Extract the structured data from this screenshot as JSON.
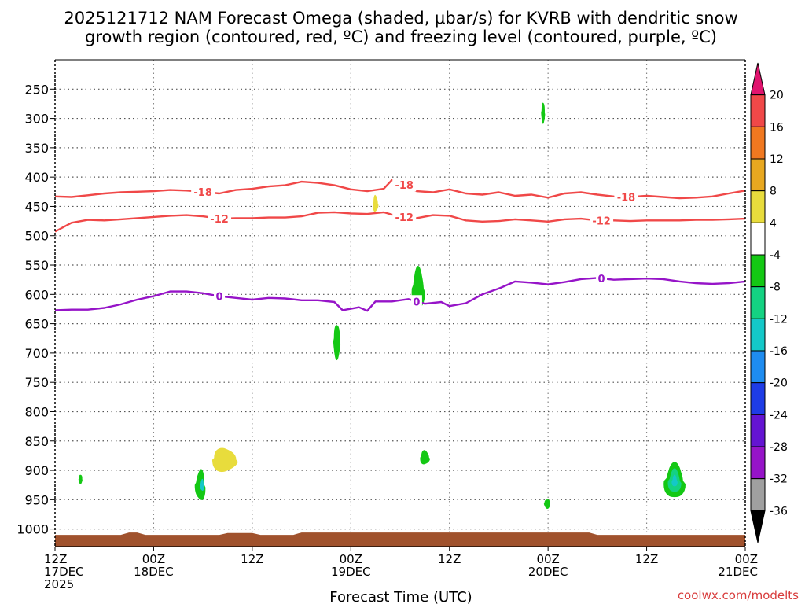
{
  "chart_data": {
    "type": "contour",
    "title_lines": [
      "2025121712 NAM Forecast Omega (shaded, μbar/s) for KVRB with dendritic snow",
      "growth region (contoured, red, ºC) and freezing level (contoured, purple, ºC)"
    ],
    "xlabel": "Forecast Time (UTC)",
    "credit": "coolwx.com/modelts",
    "x_range_hours": [
      0,
      84
    ],
    "x_ticks": [
      {
        "h": 0,
        "l1": "12Z",
        "l2": "17DEC",
        "l3": "2025"
      },
      {
        "h": 12,
        "l1": "00Z",
        "l2": "18DEC"
      },
      {
        "h": 24,
        "l1": "12Z"
      },
      {
        "h": 36,
        "l1": "00Z",
        "l2": "19DEC"
      },
      {
        "h": 48,
        "l1": "12Z"
      },
      {
        "h": 60,
        "l1": "00Z",
        "l2": "20DEC"
      },
      {
        "h": 72,
        "l1": "12Z"
      },
      {
        "h": 84,
        "l1": "00Z",
        "l2": "21DEC"
      }
    ],
    "y_ticks": [
      {
        "p": 250,
        "label": "250"
      },
      {
        "p": 300,
        "label": "300"
      },
      {
        "p": 350,
        "label": "350"
      },
      {
        "p": 400,
        "label": "400"
      },
      {
        "p": 450,
        "label": "450"
      },
      {
        "p": 500,
        "label": "500"
      },
      {
        "p": 550,
        "label": "550"
      },
      {
        "p": 600,
        "label": "600"
      },
      {
        "p": 650,
        "label": "650"
      },
      {
        "p": 700,
        "label": "700"
      },
      {
        "p": 750,
        "label": "750"
      },
      {
        "p": 800,
        "label": "800"
      },
      {
        "p": 850,
        "label": "850"
      },
      {
        "p": 900,
        "label": "900"
      },
      {
        "p": 950,
        "label": "950"
      },
      {
        "p": 1000,
        "label": "1000"
      }
    ],
    "colorbar": {
      "labels": [
        "20",
        "16",
        "12",
        "8",
        "4",
        "-4",
        "-8",
        "-12",
        "-16",
        "-20",
        "-24",
        "-28",
        "-32",
        "-36"
      ],
      "colors": [
        "#e0146e",
        "#f04848",
        "#f07820",
        "#e8a820",
        "#e8dc3c",
        "#ffffff",
        "#14c814",
        "#14d282",
        "#14c8c8",
        "#1e8cf0",
        "#1e3ce6",
        "#6414d2",
        "#9614c8",
        "#a0a0a0",
        "#000000"
      ]
    },
    "contours": [
      {
        "name": "-18C",
        "label": "-18",
        "color": "#f04848",
        "label_hours": [
          18,
          42.5,
          69.5
        ],
        "points": [
          [
            0,
            433
          ],
          [
            2,
            434
          ],
          [
            4,
            431
          ],
          [
            6,
            428
          ],
          [
            8,
            426
          ],
          [
            10,
            425
          ],
          [
            12,
            424
          ],
          [
            14,
            422
          ],
          [
            16,
            423
          ],
          [
            18,
            425
          ],
          [
            20,
            428
          ],
          [
            22,
            422
          ],
          [
            24,
            420
          ],
          [
            26,
            416
          ],
          [
            28,
            414
          ],
          [
            30,
            408
          ],
          [
            32,
            410
          ],
          [
            34,
            414
          ],
          [
            36,
            421
          ],
          [
            38,
            424
          ],
          [
            40,
            420
          ],
          [
            41,
            405
          ],
          [
            42,
            410
          ],
          [
            44,
            424
          ],
          [
            46,
            426
          ],
          [
            48,
            421
          ],
          [
            50,
            428
          ],
          [
            52,
            430
          ],
          [
            54,
            426
          ],
          [
            56,
            432
          ],
          [
            58,
            430
          ],
          [
            60,
            435
          ],
          [
            62,
            428
          ],
          [
            64,
            426
          ],
          [
            66,
            430
          ],
          [
            68,
            433
          ],
          [
            70,
            434
          ],
          [
            72,
            432
          ],
          [
            74,
            434
          ],
          [
            76,
            436
          ],
          [
            78,
            435
          ],
          [
            80,
            433
          ],
          [
            82,
            428
          ],
          [
            84,
            423
          ]
        ]
      },
      {
        "name": "-12C",
        "label": "-12",
        "color": "#f04848",
        "label_hours": [
          20,
          42.5,
          66.5
        ],
        "points": [
          [
            0,
            493
          ],
          [
            2,
            478
          ],
          [
            4,
            473
          ],
          [
            6,
            474
          ],
          [
            8,
            472
          ],
          [
            10,
            470
          ],
          [
            12,
            468
          ],
          [
            14,
            466
          ],
          [
            16,
            465
          ],
          [
            18,
            467
          ],
          [
            20,
            471
          ],
          [
            22,
            470
          ],
          [
            24,
            470
          ],
          [
            26,
            469
          ],
          [
            28,
            469
          ],
          [
            30,
            467
          ],
          [
            32,
            461
          ],
          [
            34,
            460
          ],
          [
            36,
            462
          ],
          [
            38,
            463
          ],
          [
            40,
            460
          ],
          [
            42,
            468
          ],
          [
            44,
            470
          ],
          [
            46,
            465
          ],
          [
            48,
            466
          ],
          [
            50,
            474
          ],
          [
            52,
            476
          ],
          [
            54,
            475
          ],
          [
            56,
            472
          ],
          [
            58,
            474
          ],
          [
            60,
            476
          ],
          [
            62,
            472
          ],
          [
            64,
            471
          ],
          [
            66,
            474
          ],
          [
            68,
            474
          ],
          [
            70,
            475
          ],
          [
            72,
            474
          ],
          [
            74,
            474
          ],
          [
            76,
            474
          ],
          [
            78,
            473
          ],
          [
            80,
            473
          ],
          [
            82,
            472
          ],
          [
            84,
            471
          ]
        ]
      },
      {
        "name": "0C",
        "label": "0",
        "color": "#9614c8",
        "label_hours": [
          20,
          44,
          66.5
        ],
        "points": [
          [
            0,
            627
          ],
          [
            2,
            626
          ],
          [
            4,
            626
          ],
          [
            6,
            623
          ],
          [
            8,
            617
          ],
          [
            10,
            609
          ],
          [
            12,
            603
          ],
          [
            14,
            595
          ],
          [
            16,
            595
          ],
          [
            18,
            598
          ],
          [
            20,
            603
          ],
          [
            22,
            606
          ],
          [
            24,
            609
          ],
          [
            26,
            606
          ],
          [
            28,
            607
          ],
          [
            30,
            610
          ],
          [
            32,
            610
          ],
          [
            34,
            613
          ],
          [
            35,
            627
          ],
          [
            37,
            622
          ],
          [
            38,
            628
          ],
          [
            39,
            612
          ],
          [
            41,
            612
          ],
          [
            43,
            608
          ],
          [
            45,
            616
          ],
          [
            47,
            613
          ],
          [
            48,
            620
          ],
          [
            50,
            615
          ],
          [
            52,
            600
          ],
          [
            54,
            590
          ],
          [
            56,
            578
          ],
          [
            58,
            580
          ],
          [
            60,
            583
          ],
          [
            62,
            579
          ],
          [
            64,
            574
          ],
          [
            66,
            572
          ],
          [
            68,
            575
          ],
          [
            70,
            574
          ],
          [
            72,
            573
          ],
          [
            74,
            574
          ],
          [
            76,
            578
          ],
          [
            78,
            581
          ],
          [
            80,
            582
          ],
          [
            82,
            581
          ],
          [
            84,
            578
          ]
        ]
      }
    ],
    "blobs": [
      {
        "name": "omega-blob-green-300",
        "color": "#14c814",
        "h": 59.4,
        "p": 290,
        "w": 0.25,
        "ph": 18,
        "spread": 0.5
      },
      {
        "name": "omega-blob-yellow-450",
        "color": "#e8dc3c",
        "h": 39.0,
        "p": 445,
        "w": 0.35,
        "ph": 14,
        "spread": 0.5
      },
      {
        "name": "omega-blob-green-600",
        "color": "#14c814",
        "h": 44.2,
        "p": 590,
        "w": 0.8,
        "ph": 36,
        "spread": 0.6
      },
      {
        "name": "omega-blob-green-690",
        "color": "#14c814",
        "h": 34.3,
        "p": 680,
        "w": 0.45,
        "ph": 30,
        "spread": 0.55
      },
      {
        "name": "omega-blob-green-870",
        "color": "#14c814",
        "h": 45.0,
        "p": 878,
        "w": 0.6,
        "ph": 12,
        "spread": 0.6
      },
      {
        "name": "omega-blob-yellow-880",
        "color": "#e8dc3c",
        "h": 20.6,
        "p": 882,
        "w": 1.6,
        "ph": 20,
        "spread": 0.65
      },
      {
        "name": "omega-blob-green-920",
        "color": "#14c814",
        "h": 17.7,
        "p": 925,
        "w": 0.65,
        "ph": 26,
        "spread": 0.55
      },
      {
        "name": "omega-blob-cyan-920",
        "color": "#14c8c8",
        "h": 17.9,
        "p": 925,
        "w": 0.25,
        "ph": 10,
        "spread": 0.55
      },
      {
        "name": "omega-blob-green-910",
        "color": "#14c814",
        "h": 3.1,
        "p": 915,
        "w": 0.25,
        "ph": 8,
        "spread": 0.6
      },
      {
        "name": "omega-blob-green-955",
        "color": "#14c814",
        "h": 59.9,
        "p": 957,
        "w": 0.4,
        "ph": 8,
        "spread": 0.6
      },
      {
        "name": "omega-blob-green-920b",
        "color": "#14c814",
        "h": 75.4,
        "p": 918,
        "w": 1.3,
        "ph": 30,
        "spread": 0.55
      },
      {
        "name": "omega-blob-teal-920b",
        "color": "#14d282",
        "h": 75.4,
        "p": 918,
        "w": 0.8,
        "ph": 20,
        "spread": 0.55
      },
      {
        "name": "omega-blob-cyan-920b",
        "color": "#14c8c8",
        "h": 75.4,
        "p": 918,
        "w": 0.35,
        "ph": 10,
        "spread": 0.55
      }
    ],
    "terrain_color": "#a0522d",
    "terrain_top": [
      [
        0,
        1010
      ],
      [
        8,
        1010
      ],
      [
        9,
        1006
      ],
      [
        10,
        1006
      ],
      [
        11,
        1010
      ],
      [
        20,
        1010
      ],
      [
        21,
        1007
      ],
      [
        24,
        1007
      ],
      [
        25,
        1010
      ],
      [
        29,
        1010
      ],
      [
        30,
        1006
      ],
      [
        65,
        1006
      ],
      [
        66,
        1010
      ],
      [
        84,
        1010
      ]
    ]
  }
}
